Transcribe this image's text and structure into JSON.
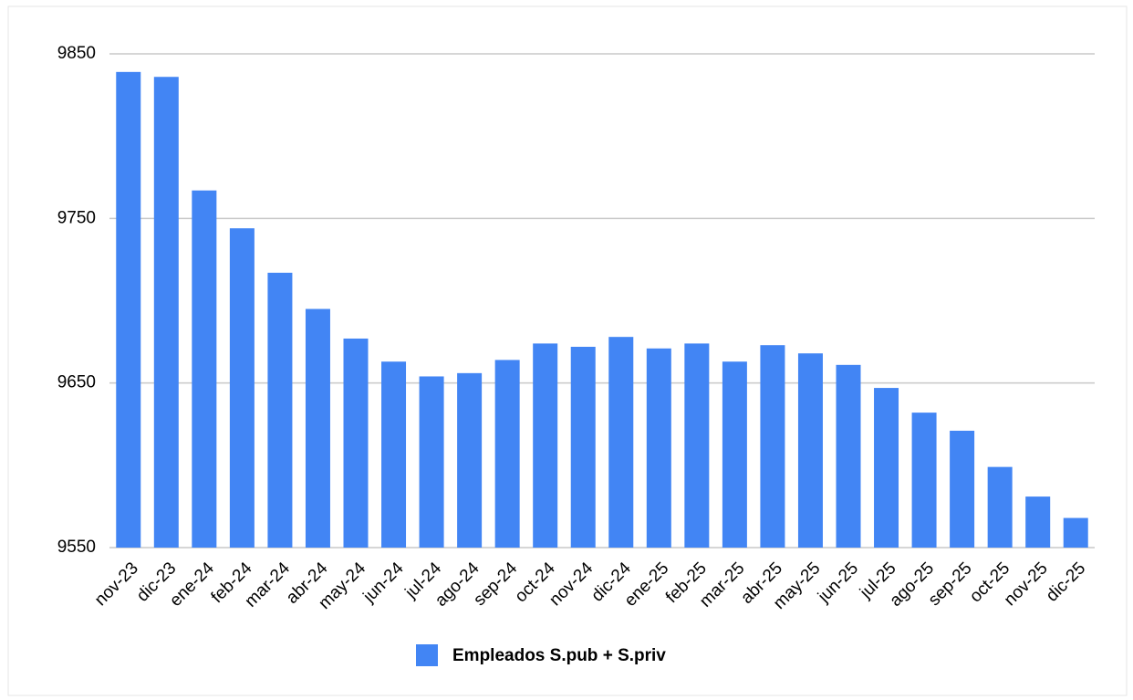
{
  "chart_data": {
    "type": "bar",
    "categories": [
      "nov-23",
      "dic-23",
      "ene-24",
      "feb-24",
      "mar-24",
      "abr-24",
      "may-24",
      "jun-24",
      "jul-24",
      "ago-24",
      "sep-24",
      "oct-24",
      "nov-24",
      "dic-24",
      "ene-25",
      "feb-25",
      "mar-25",
      "abr-25",
      "may-25",
      "jun-25",
      "jul-25",
      "ago-25",
      "sep-25",
      "oct-25",
      "nov-25",
      "dic-25"
    ],
    "series": [
      {
        "name": "Empleados S.pub +  S.priv",
        "color": "#4285f4",
        "values": [
          9839,
          9836,
          9767,
          9744,
          9717,
          9695,
          9677,
          9663,
          9654,
          9656,
          9664,
          9674,
          9672,
          9678,
          9671,
          9674,
          9663,
          9673,
          9668,
          9661,
          9647,
          9632,
          9621,
          9599,
          9581,
          9568
        ]
      }
    ],
    "ylim": [
      9550,
      9850
    ],
    "yticks": [
      9550,
      9650,
      9750,
      9850
    ],
    "grid": true,
    "legend": "bottom"
  }
}
